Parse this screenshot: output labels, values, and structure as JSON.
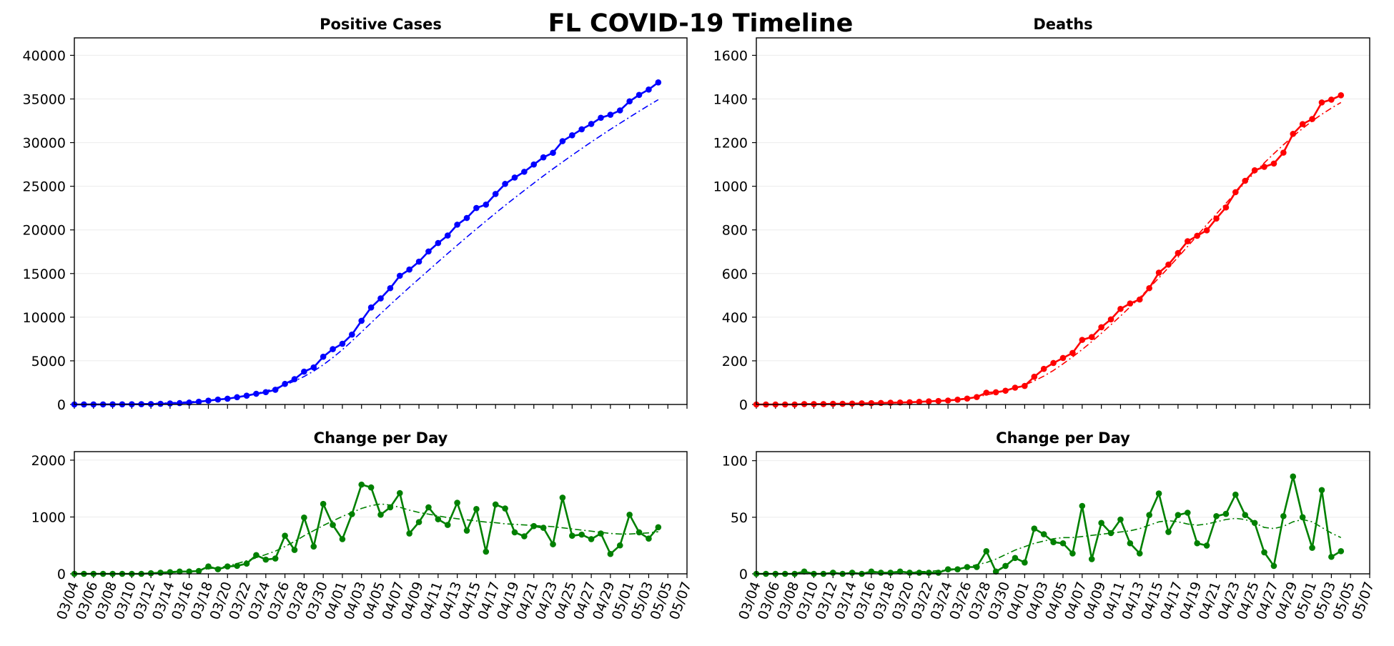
{
  "figure": {
    "title": "FL COVID-19 Timeline"
  },
  "chart_data": [
    {
      "id": "cases",
      "type": "line",
      "title": "Positive Cases",
      "xlabel": "",
      "ylabel": "",
      "ylim": [
        0,
        42000
      ],
      "yticks": [
        0,
        5000,
        10000,
        15000,
        20000,
        25000,
        30000,
        35000,
        40000
      ],
      "grid": "horizontal",
      "color": "#0000ff",
      "x_start": "03/04",
      "series": [
        {
          "values": [
            2,
            3,
            7,
            9,
            14,
            18,
            28,
            35,
            50,
            77,
            115,
            155,
            216,
            314,
            432,
            563,
            658,
            830,
            1007,
            1227,
            1412,
            1682,
            2355,
            2900,
            3763,
            4246,
            5473,
            6338,
            6955,
            8010,
            9585,
            11111,
            12151,
            13324,
            14747,
            15456,
            16364,
            17531,
            18494,
            19355,
            20601,
            21367,
            22511,
            22897,
            24119,
            25269,
            25996,
            26660,
            27495,
            28309,
            28832,
            30168,
            30839,
            31528,
            32138,
            32846,
            33193,
            33690,
            34728,
            35463,
            36078,
            36897
          ]
        },
        {
          "style": "dashdot",
          "values": [
            0,
            0,
            0,
            0,
            20,
            40,
            60,
            80,
            110,
            150,
            190,
            240,
            300,
            370,
            460,
            560,
            690,
            850,
            1040,
            1270,
            1540,
            1860,
            2230,
            2680,
            3200,
            3820,
            4540,
            5360,
            6270,
            7260,
            8300,
            9350,
            10400,
            11430,
            12440,
            13430,
            14400,
            15370,
            16330,
            17290,
            18240,
            19180,
            20110,
            21020,
            21920,
            22800,
            23670,
            24520,
            25360,
            26180,
            26990,
            27780,
            28560,
            29320,
            30070,
            30800,
            31520,
            32220,
            32910,
            33590,
            34260,
            34920
          ]
        }
      ]
    },
    {
      "id": "deaths",
      "type": "line",
      "title": "Deaths",
      "xlabel": "",
      "ylabel": "",
      "ylim": [
        0,
        1680
      ],
      "yticks": [
        0,
        200,
        400,
        600,
        800,
        1000,
        1200,
        1400,
        1600
      ],
      "grid": "horizontal",
      "color": "#ff0000",
      "x_start": "03/04",
      "series": [
        {
          "values": [
            0,
            0,
            0,
            0,
            0,
            2,
            2,
            2,
            3,
            3,
            4,
            5,
            6,
            7,
            8,
            9,
            10,
            12,
            14,
            16,
            18,
            22,
            27,
            34,
            54,
            56,
            63,
            77,
            85,
            127,
            163,
            190,
            213,
            236,
            296,
            309,
            354,
            390,
            438,
            463,
            481,
            533,
            604,
            641,
            694,
            748,
            773,
            798,
            852,
            903,
            973,
            1025,
            1073,
            1089,
            1104,
            1154,
            1240,
            1285,
            1308,
            1384,
            1397,
            1417
          ]
        },
        {
          "style": "dashdot",
          "values": [
            0,
            0,
            0,
            0,
            0,
            1,
            1,
            2,
            2,
            3,
            4,
            4,
            5,
            6,
            7,
            8,
            10,
            12,
            14,
            17,
            20,
            24,
            29,
            35,
            44,
            52,
            63,
            75,
            89,
            108,
            130,
            156,
            186,
            218,
            252,
            288,
            326,
            365,
            405,
            447,
            490,
            534,
            580,
            627,
            675,
            724,
            774,
            824,
            873,
            922,
            970,
            1017,
            1063,
            1107,
            1149,
            1190,
            1229,
            1265,
            1299,
            1330,
            1358,
            1384
          ]
        }
      ]
    },
    {
      "id": "cases_change",
      "type": "line",
      "title": "Change per Day",
      "xlabel": "",
      "ylabel": "",
      "ylim": [
        0,
        2150
      ],
      "yticks": [
        0,
        1000,
        2000
      ],
      "grid": "horizontal",
      "color": "#008000",
      "x_start": "03/04",
      "series": [
        {
          "values": [
            0,
            0,
            0,
            0,
            0,
            0,
            0,
            0,
            10,
            20,
            30,
            40,
            40,
            50,
            130,
            80,
            130,
            140,
            180,
            330,
            250,
            270,
            670,
            420,
            990,
            480,
            1230,
            860,
            610,
            1050,
            1570,
            1520,
            1040,
            1170,
            1420,
            710,
            910,
            1170,
            960,
            860,
            1250,
            760,
            1140,
            390,
            1220,
            1150,
            730,
            660,
            840,
            810,
            520,
            1340,
            670,
            690,
            610,
            710,
            350,
            500,
            1040,
            730,
            620,
            820
          ]
        },
        {
          "style": "dashdot",
          "values": [
            0,
            0,
            0,
            0,
            0,
            0,
            0,
            0,
            5,
            10,
            20,
            30,
            40,
            60,
            90,
            110,
            140,
            180,
            230,
            280,
            340,
            400,
            480,
            570,
            670,
            760,
            850,
            930,
            1010,
            1080,
            1150,
            1200,
            1230,
            1210,
            1170,
            1120,
            1080,
            1050,
            1020,
            990,
            970,
            950,
            930,
            910,
            900,
            880,
            870,
            860,
            850,
            840,
            830,
            810,
            790,
            770,
            750,
            730,
            710,
            700,
            700,
            710,
            720,
            740
          ]
        }
      ]
    },
    {
      "id": "deaths_change",
      "type": "line",
      "title": "Change per Day",
      "xlabel": "",
      "ylabel": "",
      "ylim": [
        0,
        108
      ],
      "yticks": [
        0,
        50,
        100
      ],
      "grid": "horizontal",
      "color": "#008000",
      "x_start": "03/04",
      "series": [
        {
          "values": [
            0,
            0,
            0,
            0,
            0,
            2,
            0,
            0,
            1,
            0,
            1,
            0,
            2,
            1,
            1,
            2,
            1,
            1,
            1,
            1,
            4,
            4,
            6,
            6,
            20,
            2,
            7,
            14,
            10,
            40,
            35,
            28,
            27,
            18,
            60,
            13,
            45,
            36,
            48,
            27,
            18,
            52,
            71,
            37,
            52,
            54,
            27,
            25,
            51,
            53,
            70,
            52,
            45,
            19,
            7,
            51,
            86,
            50,
            23,
            74,
            15,
            20
          ]
        },
        {
          "style": "dashdot",
          "values": [
            0,
            0,
            0,
            0,
            0,
            0,
            0,
            0,
            0,
            0,
            0,
            0,
            1,
            1,
            1,
            1,
            1,
            2,
            2,
            3,
            3,
            4,
            6,
            8,
            10,
            13,
            17,
            21,
            24,
            27,
            29,
            31,
            32,
            32,
            33,
            34,
            35,
            36,
            37,
            38,
            40,
            43,
            46,
            47,
            46,
            44,
            43,
            44,
            46,
            48,
            49,
            48,
            45,
            41,
            40,
            42,
            46,
            48,
            46,
            41,
            36,
            32
          ]
        }
      ]
    }
  ],
  "x_axis": {
    "tick_labels": [
      "03/04",
      "03/06",
      "03/08",
      "03/10",
      "03/12",
      "03/14",
      "03/16",
      "03/18",
      "03/20",
      "03/22",
      "03/24",
      "03/26",
      "03/28",
      "03/30",
      "04/01",
      "04/03",
      "04/05",
      "04/07",
      "04/09",
      "04/11",
      "04/13",
      "04/15",
      "04/17",
      "04/19",
      "04/21",
      "04/23",
      "04/25",
      "04/27",
      "04/29",
      "05/01",
      "05/03",
      "05/05",
      "05/07"
    ]
  }
}
